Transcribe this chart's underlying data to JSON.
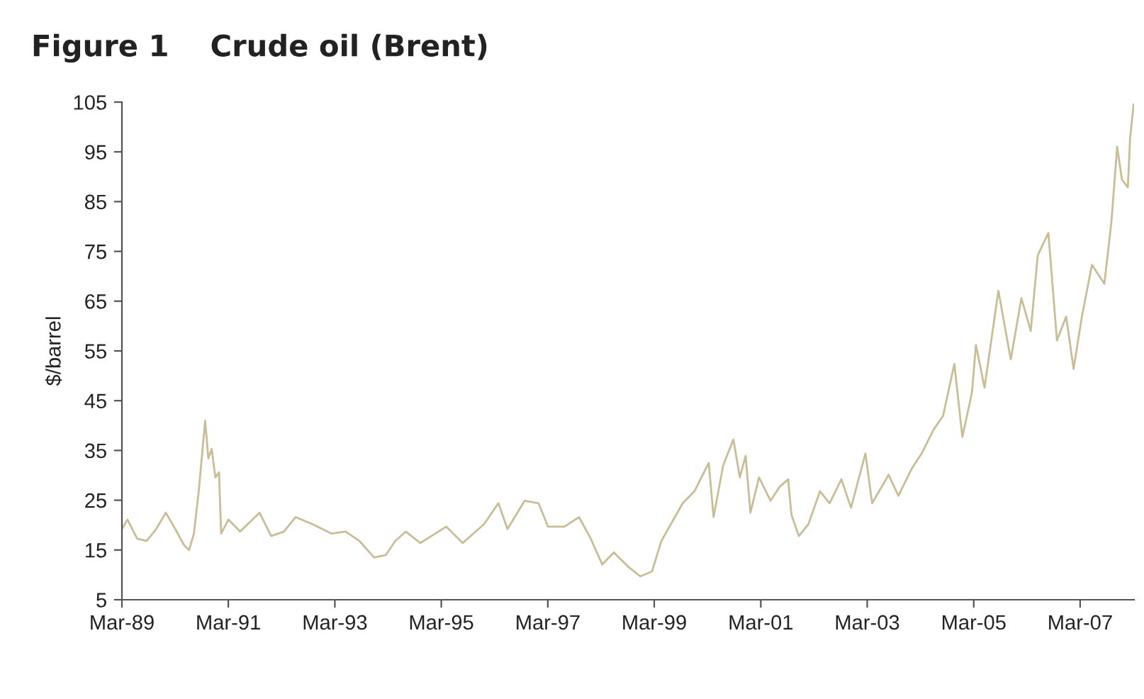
{
  "chart_data": {
    "type": "line",
    "title": "Figure 1    Crude oil (Brent)",
    "ylabel": "$/barrel",
    "xlim": [
      "1989-03-01",
      "2008-03-05"
    ],
    "xticks": [
      {
        "value": "1989-03-01",
        "label": "Mar-89"
      },
      {
        "value": "1991-03-01",
        "label": "Mar-91"
      },
      {
        "value": "1993-03-01",
        "label": "Mar-93"
      },
      {
        "value": "1995-03-01",
        "label": "Mar-95"
      },
      {
        "value": "1997-03-01",
        "label": "Mar-97"
      },
      {
        "value": "1999-03-01",
        "label": "Mar-99"
      },
      {
        "value": "2001-03-01",
        "label": "Mar-01"
      },
      {
        "value": "2003-03-01",
        "label": "Mar-03"
      },
      {
        "value": "2005-03-01",
        "label": "Mar-05"
      },
      {
        "value": "2007-03-01",
        "label": "Mar-07"
      }
    ],
    "ylim": [
      5,
      105
    ],
    "yticks": [
      5,
      15,
      25,
      35,
      45,
      55,
      65,
      75,
      85,
      95,
      105
    ],
    "grid": false,
    "legend": false,
    "marker": "none",
    "line_style": "solid",
    "series": [
      {
        "color": "#c8bd97",
        "x": [
          "1989-03-01",
          "1989-04-08",
          "1989-06-13",
          "1989-08-17",
          "1989-10-22",
          "1989-12-27",
          "1990-03-02",
          "1990-05-03",
          "1990-06-05",
          "1990-07-08",
          "1990-08-10",
          "1990-09-23",
          "1990-10-15",
          "1990-11-07",
          "1990-12-02",
          "1990-12-27",
          "1991-01-11",
          "1991-03-02",
          "1991-05-21",
          "1991-10-01",
          "1991-12-20",
          "1992-03-16",
          "1992-06-05",
          "1992-09-27",
          "1993-02-07",
          "1993-05-14",
          "1993-08-17",
          "1993-11-25",
          "1994-02-14",
          "1994-04-19",
          "1994-07-01",
          "1994-10-08",
          "1995-04-04",
          "1995-07-26",
          "1995-12-20",
          "1996-03-27",
          "1996-05-28",
          "1996-09-23",
          "1996-12-27",
          "1997-03-02",
          "1997-06-23",
          "1997-10-01",
          "1997-12-20",
          "1998-03-09",
          "1998-05-28",
          "1998-09-05",
          "1998-11-25",
          "1999-02-14",
          "1999-04-19",
          "1999-06-23",
          "1999-09-13",
          "1999-12-02",
          "2000-03-09",
          "2000-04-11",
          "2000-06-16",
          "2000-08-25",
          "2000-10-08",
          "2000-11-17",
          "2000-12-20",
          "2001-02-17",
          "2001-05-07",
          "2001-07-08",
          "2001-09-05",
          "2001-09-27",
          "2001-11-17",
          "2002-01-22",
          "2002-04-11",
          "2002-06-16",
          "2002-09-05",
          "2002-11-10",
          "2003-02-17",
          "2003-04-04",
          "2003-07-26",
          "2003-10-01",
          "2004-01-04",
          "2004-03-09",
          "2004-05-28",
          "2004-08-03",
          "2004-10-19",
          "2004-12-13",
          "2005-02-17",
          "2005-03-16",
          "2005-05-14",
          "2005-08-17",
          "2005-11-10",
          "2006-01-22",
          "2006-03-27",
          "2006-05-14",
          "2006-07-26",
          "2006-09-23",
          "2006-11-25",
          "2007-01-15",
          "2007-03-13",
          "2007-05-21",
          "2007-08-14",
          "2007-10-01",
          "2007-11-10",
          "2007-12-13",
          "2008-01-22",
          "2008-02-07",
          "2008-03-02"
        ],
        "values": [
          19.2,
          21.1,
          17.3,
          16.8,
          19.2,
          22.5,
          19.2,
          15.9,
          15.0,
          18.3,
          26.8,
          41.0,
          33.4,
          35.3,
          29.6,
          30.6,
          18.3,
          21.1,
          18.7,
          22.5,
          17.8,
          18.7,
          21.6,
          20.2,
          18.3,
          18.7,
          16.8,
          13.5,
          14.0,
          16.8,
          18.7,
          16.4,
          19.7,
          16.4,
          20.2,
          24.4,
          19.2,
          24.9,
          24.4,
          19.7,
          19.7,
          21.6,
          17.3,
          12.1,
          14.5,
          11.6,
          9.7,
          10.7,
          16.8,
          20.2,
          24.4,
          26.8,
          32.5,
          21.6,
          32.0,
          37.2,
          29.6,
          33.9,
          22.5,
          29.6,
          24.9,
          27.7,
          29.2,
          22.1,
          17.8,
          20.2,
          26.8,
          24.4,
          29.2,
          23.5,
          34.4,
          24.4,
          30.1,
          25.9,
          31.5,
          34.4,
          39.1,
          42.0,
          52.4,
          37.7,
          46.7,
          56.2,
          47.6,
          67.1,
          53.3,
          65.6,
          59.0,
          74.2,
          78.7,
          57.1,
          61.9,
          51.4,
          61.9,
          72.3,
          68.5,
          80.8,
          96.0,
          89.4,
          87.9,
          97.9,
          104.5
        ]
      }
    ]
  }
}
